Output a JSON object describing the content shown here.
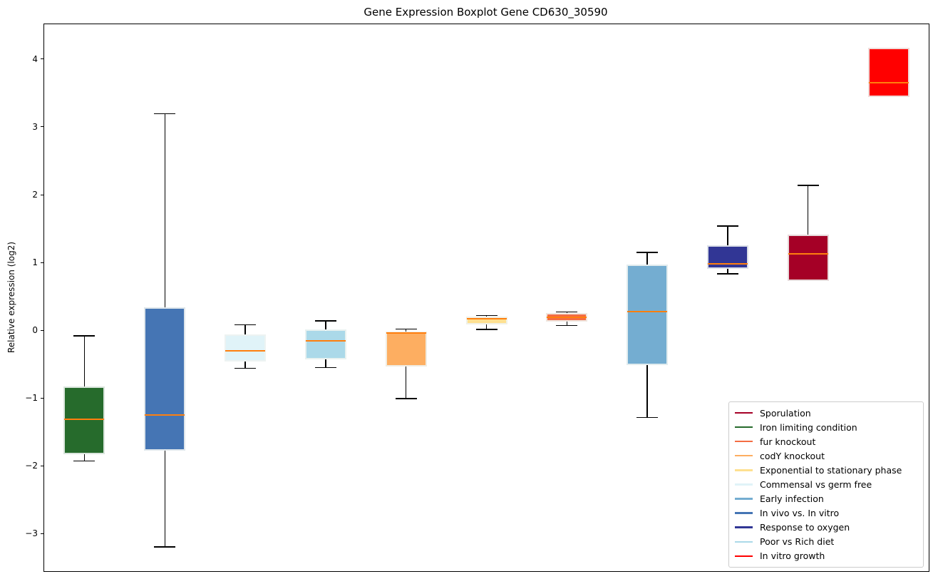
{
  "chart_data": {
    "type": "boxplot",
    "title": "Gene Expression Boxplot Gene CD630_30590",
    "ylabel": "Relative expression (log2)",
    "xlabel": "",
    "ylim": [
      -3.55,
      4.52
    ],
    "yticks": [
      4,
      3,
      2,
      1,
      0,
      -1,
      -2,
      -3
    ],
    "grid": false,
    "frame": true,
    "legend_position": "lower right",
    "colors": {
      "median": "#ff7f0e",
      "whisker": "#000000",
      "legend_border": "#cccccc",
      "spine": "#000000",
      "background": "#ffffff"
    },
    "boxes": [
      {
        "label": "Iron limiting condition",
        "color": "#266b2c",
        "whislo": -1.93,
        "q1": -1.82,
        "med": -1.31,
        "q3": -0.82,
        "whishi": -0.07
      },
      {
        "label": "In vivo vs. In vitro",
        "color": "#4575b4",
        "whislo": -3.2,
        "q1": -1.77,
        "med": -1.25,
        "q3": 0.34,
        "whishi": 3.21
      },
      {
        "label": "Commensal vs germ free",
        "color": "#e0f3f8",
        "whislo": -0.56,
        "q1": -0.46,
        "med": -0.3,
        "q3": -0.06,
        "whishi": 0.09
      },
      {
        "label": "Poor vs Rich diet",
        "color": "#abd9e9",
        "whislo": -0.55,
        "q1": -0.43,
        "med": -0.15,
        "q3": 0.02,
        "whishi": 0.15
      },
      {
        "label": "codY knockout",
        "color": "#fdae61",
        "whislo": -1.01,
        "q1": -0.53,
        "med": -0.04,
        "q3": -0.01,
        "whishi": 0.03
      },
      {
        "label": "Exponential to stationary phase",
        "color": "#fee090",
        "whislo": 0.01,
        "q1": 0.09,
        "med": 0.17,
        "q3": 0.21,
        "whishi": 0.23
      },
      {
        "label": "fur knockout",
        "color": "#f46d43",
        "whislo": 0.07,
        "q1": 0.13,
        "med": 0.2,
        "q3": 0.26,
        "whishi": 0.28
      },
      {
        "label": "Early infection",
        "color": "#74add1",
        "whislo": -1.29,
        "q1": -0.51,
        "med": 0.28,
        "q3": 0.97,
        "whishi": 1.16
      },
      {
        "label": "Response to oxygen",
        "color": "#313695",
        "whislo": 0.83,
        "q1": 0.91,
        "med": 0.98,
        "q3": 1.26,
        "whishi": 1.55
      },
      {
        "label": "Sporulation",
        "color": "#a50026",
        "whislo": 0.73,
        "q1": 0.73,
        "med": 1.13,
        "q3": 1.42,
        "whishi": 2.15
      },
      {
        "label": "In vitro growth",
        "color": "#ff0000",
        "whislo": 3.45,
        "q1": 3.45,
        "med": 3.66,
        "q3": 4.17,
        "whishi": 4.17
      }
    ],
    "legend": [
      {
        "label": "Sporulation",
        "color": "#a50026"
      },
      {
        "label": "Iron limiting condition",
        "color": "#266b2c"
      },
      {
        "label": "fur knockout",
        "color": "#f46d43"
      },
      {
        "label": "codY knockout",
        "color": "#fdae61"
      },
      {
        "label": "Exponential to stationary phase",
        "color": "#fee090"
      },
      {
        "label": "Commensal vs germ free",
        "color": "#e0f3f8"
      },
      {
        "label": "Early infection",
        "color": "#74add1"
      },
      {
        "label": "In vivo vs. In vitro",
        "color": "#4575b4"
      },
      {
        "label": "Response to oxygen",
        "color": "#313695"
      },
      {
        "label": "Poor vs Rich diet",
        "color": "#abd9e9"
      },
      {
        "label": "In vitro growth",
        "color": "#ff0000"
      }
    ]
  }
}
